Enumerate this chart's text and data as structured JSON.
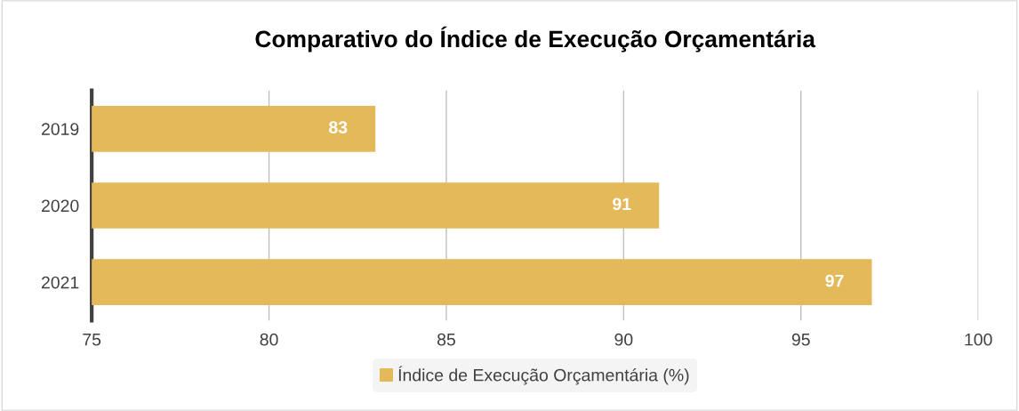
{
  "chart_data": {
    "type": "bar",
    "orientation": "horizontal",
    "title": "Comparativo do Índice de Execução Orçamentária",
    "categories": [
      "2019",
      "2020",
      "2021"
    ],
    "series": [
      {
        "name": "Índice de Execução Orçamentária (%)",
        "color": "#e3b95a",
        "values": [
          83,
          91,
          97
        ]
      }
    ],
    "xlim": [
      75,
      100
    ],
    "xticks": [
      75,
      80,
      85,
      90,
      95,
      100
    ],
    "grid": "x",
    "legend": "bottom",
    "data_labels": true
  }
}
